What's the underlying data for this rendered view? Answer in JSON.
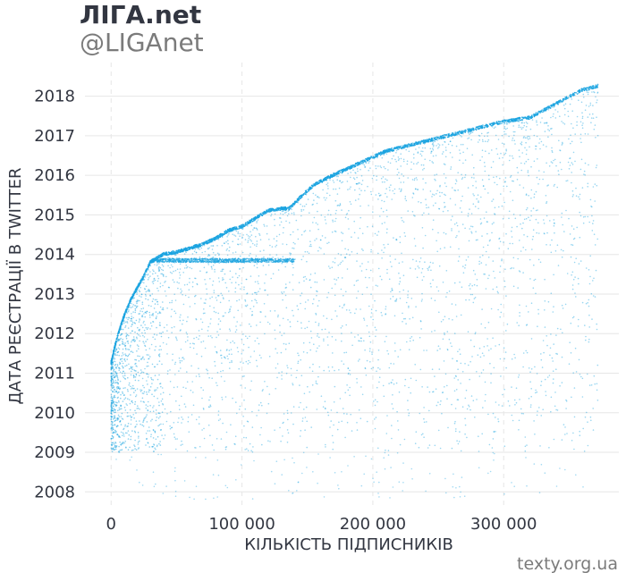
{
  "header": {
    "title": "ЛІГА.net",
    "subtitle": "@LIGAnet"
  },
  "footer": {
    "credit": "texty.org.ua"
  },
  "chart_data": {
    "type": "scatter",
    "title": "ЛІГА.net",
    "subtitle": "@LIGAnet",
    "xlabel": "КІЛЬКІСТЬ ПІДПИСНИКІВ",
    "ylabel": "ДАТА РЕЄСТРАЦІЇ В TWITTER",
    "xlim": [
      -20000,
      388000
    ],
    "ylim": [
      2007.6,
      2018.85
    ],
    "x_ticks": [
      0,
      100000,
      200000,
      300000
    ],
    "x_tick_labels": [
      "0",
      "100 000",
      "200 000",
      "300 000"
    ],
    "y_ticks": [
      2008,
      2009,
      2010,
      2011,
      2012,
      2013,
      2014,
      2015,
      2016,
      2017,
      2018
    ],
    "y_tick_labels": [
      "2008",
      "2009",
      "2010",
      "2011",
      "2012",
      "2013",
      "2014",
      "2015",
      "2016",
      "2017",
      "2018"
    ],
    "grid": true,
    "point_color": "#1aa3e0",
    "upper_envelope": {
      "x": [
        0,
        2000,
        5000,
        10000,
        15000,
        20000,
        25000,
        30000,
        35000,
        40000,
        50000,
        60000,
        70000,
        80000,
        90000,
        100000,
        110000,
        120000,
        130000,
        136000,
        145000,
        155000,
        170000,
        190000,
        210000,
        240000,
        270000,
        300000,
        320000,
        340000,
        360000,
        372000
      ],
      "y": [
        2011.3,
        2011.6,
        2012.0,
        2012.5,
        2012.9,
        2013.2,
        2013.5,
        2013.85,
        2013.95,
        2014.05,
        2014.1,
        2014.2,
        2014.3,
        2014.45,
        2014.65,
        2014.75,
        2014.95,
        2015.15,
        2015.2,
        2015.2,
        2015.5,
        2015.8,
        2016.05,
        2016.35,
        2016.65,
        2016.9,
        2017.15,
        2017.4,
        2017.5,
        2017.85,
        2018.2,
        2018.3
      ]
    }
  }
}
